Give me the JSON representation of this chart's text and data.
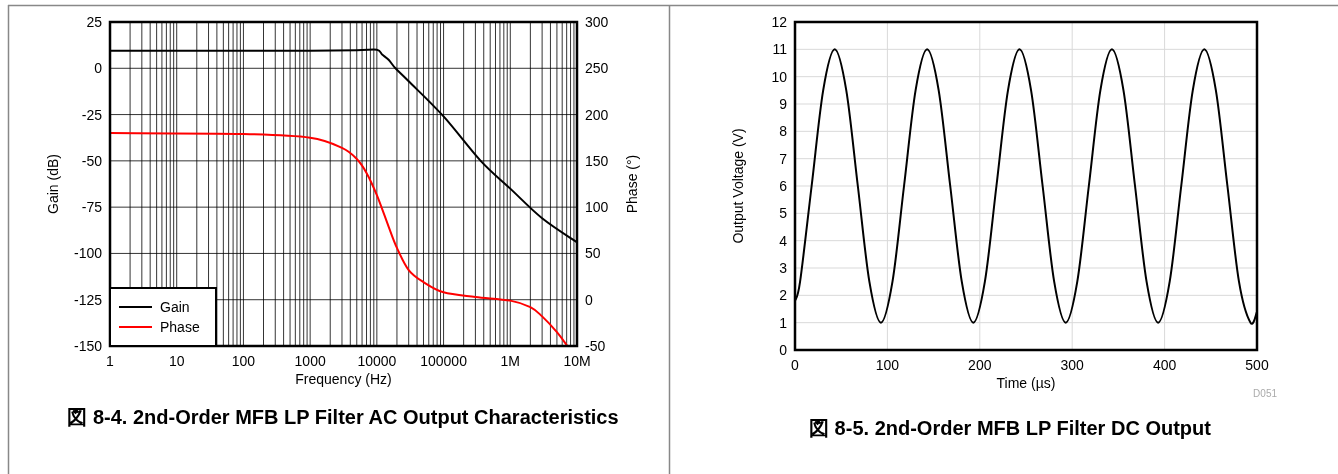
{
  "chart_data": [
    {
      "type": "line",
      "title": "図 8-4. 2nd-Order MFB LP Filter AC Output Characteristics",
      "xlabel": "Frequency (Hz)",
      "ylabel": "Gain (dB)",
      "y2label": "Phase (°)",
      "log": "x",
      "grid": true,
      "legend": "bottom left",
      "xlim": [
        1,
        10000000
      ],
      "xticks": [
        1,
        10,
        100,
        1000,
        10000,
        100000,
        {
          "value": 1000000,
          "label": "1M"
        },
        {
          "value": 10000000,
          "label": "10M"
        }
      ],
      "ylim": [
        -150,
        25
      ],
      "yticks": [
        -150,
        -125,
        -100,
        -75,
        -50,
        -25,
        0,
        25
      ],
      "y2lim": [
        -50,
        300
      ],
      "y2ticks": [
        -50,
        0,
        50,
        100,
        150,
        200,
        250,
        300
      ],
      "series": [
        {
          "name": "Gain",
          "color": "#000000",
          "x": [
            1,
            10,
            100,
            1000,
            5000,
            10000,
            12000,
            15000,
            19000,
            30000,
            100000,
            360000,
            1000000,
            3000000,
            10000000
          ],
          "values": [
            9.5,
            9.5,
            9.5,
            9.5,
            9.7,
            10,
            7.4,
            4.6,
            0,
            -7,
            -26,
            -50,
            -65,
            -81,
            -94
          ]
        },
        {
          "name": "Phase",
          "color": "#ff0000",
          "axis": "y2",
          "x": [
            1,
            100,
            1000,
            3000,
            5000,
            7000,
            10000,
            15000,
            20000,
            30000,
            50000,
            100000,
            300000,
            1000000,
            2000000,
            3000000,
            5000000,
            7000000
          ],
          "values": [
            180,
            179,
            175,
            164,
            152,
            137,
            113,
            79,
            56,
            32,
            19,
            8,
            3,
            -1,
            -8,
            -18,
            -35,
            -49
          ]
        }
      ]
    },
    {
      "type": "line",
      "title": "図 8-5. 2nd-Order MFB LP Filter DC Output",
      "xlabel": "Time (µs)",
      "ylabel": "Output Voltage (V)",
      "grid": true,
      "annotations": [
        "D051"
      ],
      "xlim": [
        0,
        500
      ],
      "xticks": [
        0,
        100,
        200,
        300,
        400,
        500
      ],
      "ylim": [
        0,
        12
      ],
      "yticks": [
        0,
        1,
        2,
        3,
        4,
        5,
        6,
        7,
        8,
        9,
        10,
        11,
        12
      ],
      "series": [
        {
          "color": "#000000",
          "x": [
            0,
            5.5,
            18,
            30.5,
            43,
            55.5,
            68,
            80.5,
            93,
            105.5,
            118,
            130.5,
            143,
            155.5,
            168,
            180.5,
            193,
            205.5,
            218,
            230.5,
            243,
            255.5,
            268,
            280.5,
            293,
            305.5,
            318,
            330.5,
            343,
            355.5,
            368,
            380.5,
            393,
            405.5,
            418,
            430.5,
            443,
            455.5,
            468,
            480.5,
            493,
            500
          ],
          "values": [
            1.8,
            2.5,
            6,
            9.5,
            11,
            9.5,
            6,
            2.5,
            1,
            2.5,
            6,
            9.5,
            11,
            9.5,
            6,
            2.5,
            1,
            2.5,
            6,
            9.5,
            11,
            9.5,
            6,
            2.5,
            1,
            2.5,
            6,
            9.5,
            11,
            9.5,
            6,
            2.5,
            1,
            2.5,
            6,
            9.5,
            11,
            9.5,
            6,
            2.5,
            1,
            1.4
          ]
        }
      ]
    }
  ]
}
